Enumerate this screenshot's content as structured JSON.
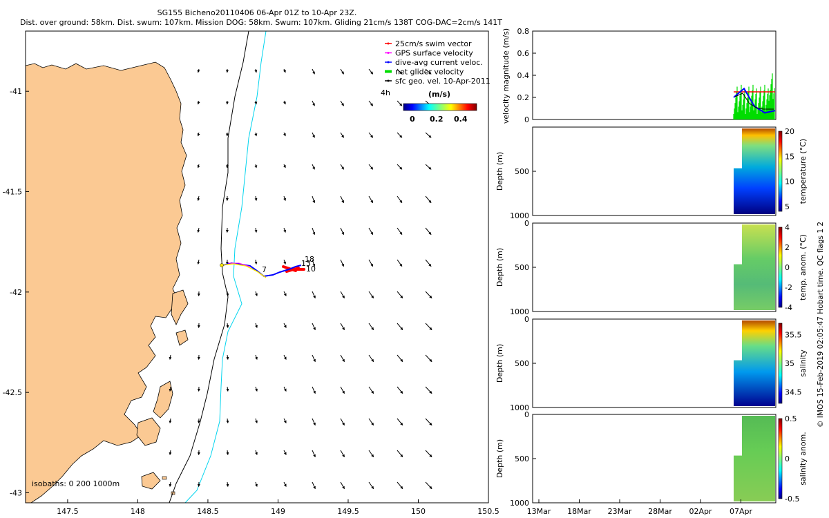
{
  "title_line1": "SG155 Bicheno20110406 06-Apr 01Z to 10-Apr 23Z.",
  "title_line2": "Dist. over ground: 58km. Dist. swum: 107km. Mission DOG: 58km. Swum: 107km. Gliding 21cm/s 138T COG-DAC=2cm/s 141T",
  "side_caption": "© IMOS 15-Feb-2019 02:05:47 Hobart time. QC flags 1  2",
  "colors": {
    "land": "#fbc993",
    "coast": "#000000",
    "isobath_200": "#000000",
    "isobath_1000": "#00d4ee",
    "track": "#0000ff",
    "swim": "#ff0000",
    "gps": "#ff00ff",
    "net": "#00dd00",
    "arrows": "#000000"
  },
  "map": {
    "x_ticks": [
      "147.5",
      "148",
      "148.5",
      "149",
      "149.5",
      "150",
      "150.5"
    ],
    "y_ticks": [
      "-41",
      "-41.5",
      "-42",
      "-42.5",
      "-43"
    ],
    "xlim": [
      147.2,
      150.5
    ],
    "ylim": [
      -43.05,
      -40.7
    ],
    "isobath_label": "isobaths: 0   200 1000m",
    "dive_labels": [
      "1",
      "7",
      "10",
      "13",
      "18"
    ],
    "legend": [
      {
        "label": "25cm/s swim vector",
        "color": "#ff0000"
      },
      {
        "label": "GPS surface velocity",
        "color": "#ff00ff"
      },
      {
        "label": "dive-avg current veloc.",
        "color": "#0000ff"
      },
      {
        "label": "net glider velocity",
        "color": "#00dd00"
      },
      {
        "label": "sfc geo. vel. 10-Apr-2011",
        "color": "#000000"
      }
    ],
    "duration_label": "4h",
    "colorbar_unit": "(m/s)",
    "colorbar_ticks": [
      "0",
      "0.2",
      "0.4"
    ]
  },
  "chart_data": [
    {
      "type": "line",
      "title": "",
      "ylabel": "velocity magnitude (m/s)",
      "ylim": [
        0,
        0.8
      ],
      "yticks": [
        "0",
        "0.2",
        "0.4",
        "0.6",
        "0.8"
      ],
      "series": [
        {
          "name": "25cm/s swim vector",
          "x": [
            "06-Apr",
            "10-Apr"
          ],
          "values": [
            0.25,
            0.25
          ]
        },
        {
          "name": "dive-avg current veloc.",
          "x": [
            "06-Apr",
            "07-Apr",
            "08-Apr",
            "09-Apr",
            "10-Apr"
          ],
          "values": [
            0.2,
            0.28,
            0.12,
            0.06,
            0.08
          ]
        },
        {
          "name": "net glider velocity",
          "x": [
            "06-Apr",
            "07-Apr",
            "08-Apr",
            "09-Apr",
            "10-Apr"
          ],
          "values": [
            0.22,
            0.3,
            0.15,
            0.1,
            0.35
          ]
        }
      ]
    },
    {
      "type": "heatmap",
      "ylabel": "Depth (m)",
      "clabel": "temperature (°C)",
      "ylim": [
        1000,
        0
      ],
      "yticks": [
        "500",
        "1000"
      ],
      "cticks": [
        "20",
        "15",
        "10",
        "5"
      ],
      "clim": [
        4,
        20
      ]
    },
    {
      "type": "heatmap",
      "ylabel": "Depth (m)",
      "clabel": "temp. anom. (°C)",
      "ylim": [
        1000,
        0
      ],
      "yticks": [
        "0",
        "500",
        "1000"
      ],
      "cticks": [
        "4",
        "2",
        "0",
        "-2",
        "-4"
      ],
      "clim": [
        -4,
        4
      ]
    },
    {
      "type": "heatmap",
      "ylabel": "Depth (m)",
      "clabel": "salinity",
      "ylim": [
        1000,
        0
      ],
      "yticks": [
        "0",
        "500",
        "1000"
      ],
      "cticks": [
        "35.5",
        "35",
        "34.5"
      ],
      "clim": [
        34.3,
        35.7
      ]
    },
    {
      "type": "heatmap",
      "ylabel": "Depth (m)",
      "clabel": "salinity anom.",
      "ylim": [
        1000,
        0
      ],
      "yticks": [
        "0",
        "500",
        "1000"
      ],
      "cticks": [
        "0.5",
        "0",
        "-0.5"
      ],
      "clim": [
        -0.5,
        0.5
      ]
    }
  ],
  "time_axis": [
    "13Mar",
    "18Mar",
    "23Mar",
    "28Mar",
    "02Apr",
    "07Apr"
  ]
}
